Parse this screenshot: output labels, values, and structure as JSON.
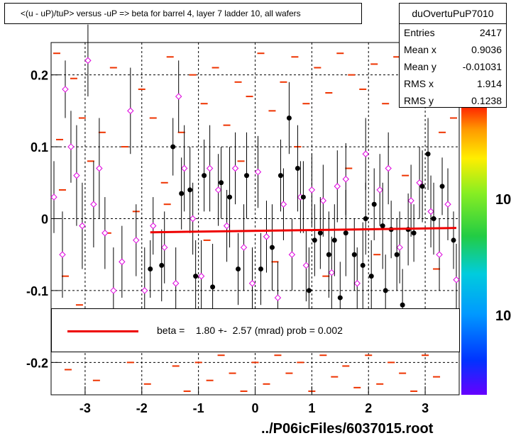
{
  "title": "<(u - uP)/tuP> versus  -uP => beta for barrel 4, layer 7 ladder 10, all wafers",
  "stats": {
    "name": "duOvertuPuP7010",
    "rows": [
      {
        "label": "Entries",
        "value": "2417"
      },
      {
        "label": "Mean x",
        "value": "0.9036"
      },
      {
        "label": "Mean y",
        "value": "-0.01031"
      },
      {
        "label": "RMS x",
        "value": "1.914"
      },
      {
        "label": "RMS y",
        "value": "0.1238"
      }
    ]
  },
  "legend": {
    "text": "beta =    1.80 +-  2.57 (mrad) prob = 0.002",
    "line_color": "#ee0000"
  },
  "footer": "../P06icFiles/6037015.root",
  "colors": {
    "histogram_marks": "#ee3300",
    "profile_black": "#000000",
    "profile_magenta": "#dd00dd",
    "fit_line": "#ee0000"
  },
  "colorbar_labels": [
    "10",
    "10"
  ],
  "chart_data": {
    "type": "scatter",
    "xlim": [
      -3.6,
      3.6
    ],
    "ylim": [
      -0.245,
      0.245
    ],
    "xticks": [
      -3,
      -2,
      -1,
      0,
      1,
      2,
      3
    ],
    "yticks": [
      -0.2,
      -0.1,
      0,
      0.1,
      0.2
    ],
    "grid": true,
    "fit": {
      "x": [
        -1.85,
        3.55
      ],
      "y": [
        -0.019,
        -0.013
      ]
    },
    "profile_black": [
      {
        "x": -1.85,
        "y": -0.07,
        "err": 0.04
      },
      {
        "x": -1.65,
        "y": -0.065,
        "err": 0.05
      },
      {
        "x": -1.45,
        "y": 0.1,
        "err": 0.04
      },
      {
        "x": -1.3,
        "y": 0.035,
        "err": 0.05
      },
      {
        "x": -1.15,
        "y": 0.04,
        "err": 0.06
      },
      {
        "x": -1.05,
        "y": -0.08,
        "err": 0.05
      },
      {
        "x": -0.9,
        "y": 0.06,
        "err": 0.05
      },
      {
        "x": -0.75,
        "y": -0.095,
        "err": 0.06
      },
      {
        "x": -0.6,
        "y": 0.05,
        "err": 0.05
      },
      {
        "x": -0.45,
        "y": 0.03,
        "err": 0.07
      },
      {
        "x": -0.3,
        "y": -0.07,
        "err": 0.05
      },
      {
        "x": -0.15,
        "y": 0.06,
        "err": 0.06
      },
      {
        "x": 0.1,
        "y": -0.07,
        "err": 0.05
      },
      {
        "x": 0.3,
        "y": -0.04,
        "err": 0.06
      },
      {
        "x": 0.45,
        "y": 0.06,
        "err": 0.05
      },
      {
        "x": 0.6,
        "y": 0.14,
        "err": 0.05
      },
      {
        "x": 0.75,
        "y": 0.07,
        "err": 0.06
      },
      {
        "x": 0.85,
        "y": 0.03,
        "err": 0.05
      },
      {
        "x": 0.95,
        "y": -0.1,
        "err": 0.06
      },
      {
        "x": 1.05,
        "y": -0.03,
        "err": 0.05
      },
      {
        "x": 1.15,
        "y": -0.02,
        "err": 0.05
      },
      {
        "x": 1.3,
        "y": -0.05,
        "err": 0.06
      },
      {
        "x": 1.4,
        "y": -0.03,
        "err": 0.05
      },
      {
        "x": 1.5,
        "y": -0.11,
        "err": 0.05
      },
      {
        "x": 1.6,
        "y": -0.02,
        "err": 0.06
      },
      {
        "x": 1.75,
        "y": -0.05,
        "err": 0.05
      },
      {
        "x": 1.9,
        "y": -0.065,
        "err": 0.06
      },
      {
        "x": 1.95,
        "y": 0.0,
        "err": 0.05
      },
      {
        "x": 2.05,
        "y": -0.08,
        "err": 0.05
      },
      {
        "x": 2.1,
        "y": 0.02,
        "err": 0.05
      },
      {
        "x": 2.25,
        "y": -0.01,
        "err": 0.06
      },
      {
        "x": 2.3,
        "y": -0.1,
        "err": 0.05
      },
      {
        "x": 2.4,
        "y": -0.015,
        "err": 0.04
      },
      {
        "x": 2.5,
        "y": -0.05,
        "err": 0.05
      },
      {
        "x": 2.6,
        "y": -0.12,
        "err": 0.05
      },
      {
        "x": 2.7,
        "y": -0.015,
        "err": 0.05
      },
      {
        "x": 2.8,
        "y": -0.02,
        "err": 0.04
      },
      {
        "x": 2.95,
        "y": 0.045,
        "err": 0.05
      },
      {
        "x": 3.05,
        "y": 0.09,
        "err": 0.05
      },
      {
        "x": 3.15,
        "y": 0.0,
        "err": 0.05
      },
      {
        "x": 3.3,
        "y": 0.045,
        "err": 0.04
      },
      {
        "x": 3.5,
        "y": -0.03,
        "err": 0.04
      }
    ],
    "profile_magenta": [
      {
        "x": -3.55,
        "y": 0.03,
        "err": 0.05
      },
      {
        "x": -3.4,
        "y": -0.05,
        "err": 0.06
      },
      {
        "x": -3.35,
        "y": 0.18,
        "err": 0.04
      },
      {
        "x": -3.25,
        "y": 0.1,
        "err": 0.05
      },
      {
        "x": -3.15,
        "y": 0.06,
        "err": 0.07
      },
      {
        "x": -3.05,
        "y": -0.01,
        "err": 0.06
      },
      {
        "x": -2.95,
        "y": 0.22,
        "err": 0.05
      },
      {
        "x": -2.85,
        "y": 0.02,
        "err": 0.06
      },
      {
        "x": -2.75,
        "y": 0.07,
        "err": 0.07
      },
      {
        "x": -2.65,
        "y": -0.02,
        "err": 0.05
      },
      {
        "x": -2.5,
        "y": -0.1,
        "err": 0.06
      },
      {
        "x": -2.35,
        "y": -0.06,
        "err": 0.05
      },
      {
        "x": -2.2,
        "y": 0.15,
        "err": 0.06
      },
      {
        "x": -2.1,
        "y": -0.03,
        "err": 0.05
      },
      {
        "x": -1.95,
        "y": -0.1,
        "err": 0.06
      },
      {
        "x": -1.8,
        "y": -0.01,
        "err": 0.04
      },
      {
        "x": -1.6,
        "y": -0.04,
        "err": 0.05
      },
      {
        "x": -1.4,
        "y": -0.09,
        "err": 0.05
      },
      {
        "x": -1.35,
        "y": 0.17,
        "err": 0.05
      },
      {
        "x": -1.25,
        "y": 0.07,
        "err": 0.06
      },
      {
        "x": -1.1,
        "y": 0.0,
        "err": 0.05
      },
      {
        "x": -0.95,
        "y": -0.08,
        "err": 0.05
      },
      {
        "x": -0.8,
        "y": 0.07,
        "err": 0.06
      },
      {
        "x": -0.65,
        "y": 0.04,
        "err": 0.05
      },
      {
        "x": -0.5,
        "y": -0.01,
        "err": 0.05
      },
      {
        "x": -0.35,
        "y": 0.07,
        "err": 0.05
      },
      {
        "x": -0.2,
        "y": -0.04,
        "err": 0.06
      },
      {
        "x": -0.05,
        "y": -0.09,
        "err": 0.05
      },
      {
        "x": 0.05,
        "y": 0.065,
        "err": 0.05
      },
      {
        "x": 0.2,
        "y": -0.025,
        "err": 0.05
      },
      {
        "x": 0.4,
        "y": -0.11,
        "err": 0.05
      },
      {
        "x": 0.5,
        "y": 0.02,
        "err": 0.05
      },
      {
        "x": 0.65,
        "y": -0.05,
        "err": 0.05
      },
      {
        "x": 0.8,
        "y": 0.03,
        "err": 0.05
      },
      {
        "x": 0.9,
        "y": -0.065,
        "err": 0.05
      },
      {
        "x": 1.0,
        "y": 0.04,
        "err": 0.05
      },
      {
        "x": 1.2,
        "y": 0.025,
        "err": 0.05
      },
      {
        "x": 1.35,
        "y": -0.075,
        "err": 0.05
      },
      {
        "x": 1.45,
        "y": 0.045,
        "err": 0.05
      },
      {
        "x": 1.6,
        "y": 0.055,
        "err": 0.05
      },
      {
        "x": 1.8,
        "y": -0.09,
        "err": 0.05
      },
      {
        "x": 1.95,
        "y": 0.09,
        "err": 0.05
      },
      {
        "x": 2.2,
        "y": 0.04,
        "err": 0.05
      },
      {
        "x": 2.35,
        "y": 0.07,
        "err": 0.05
      },
      {
        "x": 2.55,
        "y": -0.04,
        "err": 0.05
      },
      {
        "x": 2.75,
        "y": 0.025,
        "err": 0.05
      },
      {
        "x": 2.9,
        "y": 0.05,
        "err": 0.05
      },
      {
        "x": 3.1,
        "y": 0.01,
        "err": 0.05
      },
      {
        "x": 3.25,
        "y": -0.05,
        "err": 0.05
      },
      {
        "x": 3.4,
        "y": 0.02,
        "err": 0.05
      },
      {
        "x": 3.55,
        "y": -0.085,
        "err": 0.05
      }
    ],
    "histogram_marks": [
      {
        "x": -3.5,
        "y": 0.23
      },
      {
        "x": -3.45,
        "y": 0.11
      },
      {
        "x": -3.4,
        "y": 0.04
      },
      {
        "x": -3.35,
        "y": -0.08
      },
      {
        "x": -3.3,
        "y": -0.21
      },
      {
        "x": -3.2,
        "y": 0.195
      },
      {
        "x": -3.1,
        "y": -0.12
      },
      {
        "x": -3.05,
        "y": 0.14
      },
      {
        "x": -2.95,
        "y": -0.18
      },
      {
        "x": -2.9,
        "y": 0.08
      },
      {
        "x": -2.8,
        "y": -0.225
      },
      {
        "x": -2.7,
        "y": 0.12
      },
      {
        "x": -2.6,
        "y": -0.02
      },
      {
        "x": -2.5,
        "y": 0.21
      },
      {
        "x": -2.4,
        "y": -0.14
      },
      {
        "x": -2.3,
        "y": 0.1
      },
      {
        "x": -2.2,
        "y": -0.2
      },
      {
        "x": -2.1,
        "y": 0.01
      },
      {
        "x": -2.0,
        "y": 0.18
      },
      {
        "x": -1.9,
        "y": -0.23
      },
      {
        "x": -1.8,
        "y": 0.14
      },
      {
        "x": -1.7,
        "y": -0.16
      },
      {
        "x": -1.6,
        "y": 0.05
      },
      {
        "x": -1.5,
        "y": 0.225
      },
      {
        "x": -1.4,
        "y": -0.205
      },
      {
        "x": -1.3,
        "y": 0.12
      },
      {
        "x": -1.2,
        "y": -0.24
      },
      {
        "x": -1.1,
        "y": 0.2
      },
      {
        "x": -1.0,
        "y": -0.2
      },
      {
        "x": -0.9,
        "y": 0.16
      },
      {
        "x": -0.8,
        "y": -0.225
      },
      {
        "x": -0.7,
        "y": 0.21
      },
      {
        "x": -0.6,
        "y": -0.19
      },
      {
        "x": -0.5,
        "y": 0.13
      },
      {
        "x": -0.4,
        "y": -0.215
      },
      {
        "x": -0.3,
        "y": 0.19
      },
      {
        "x": -0.2,
        "y": -0.24
      },
      {
        "x": -0.1,
        "y": 0.17
      },
      {
        "x": 0.0,
        "y": -0.2
      },
      {
        "x": 0.1,
        "y": 0.23
      },
      {
        "x": 0.2,
        "y": -0.23
      },
      {
        "x": 0.3,
        "y": 0.15
      },
      {
        "x": 0.4,
        "y": -0.19
      },
      {
        "x": 0.5,
        "y": 0.19
      },
      {
        "x": 0.6,
        "y": -0.215
      },
      {
        "x": 0.7,
        "y": 0.225
      },
      {
        "x": 0.8,
        "y": -0.2
      },
      {
        "x": 0.9,
        "y": 0.16
      },
      {
        "x": 1.0,
        "y": -0.24
      },
      {
        "x": 1.1,
        "y": 0.21
      },
      {
        "x": 1.2,
        "y": -0.19
      },
      {
        "x": 1.3,
        "y": 0.175
      },
      {
        "x": 1.4,
        "y": -0.22
      },
      {
        "x": 1.5,
        "y": 0.23
      },
      {
        "x": 1.6,
        "y": -0.205
      },
      {
        "x": 1.7,
        "y": 0.2
      },
      {
        "x": 1.8,
        "y": -0.235
      },
      {
        "x": 1.9,
        "y": 0.18
      },
      {
        "x": 2.0,
        "y": -0.19
      },
      {
        "x": 2.1,
        "y": 0.215
      },
      {
        "x": 2.2,
        "y": -0.23
      },
      {
        "x": 2.3,
        "y": 0.16
      },
      {
        "x": 2.4,
        "y": -0.2
      },
      {
        "x": 2.5,
        "y": 0.225
      },
      {
        "x": 2.6,
        "y": -0.215
      },
      {
        "x": 2.7,
        "y": 0.2
      },
      {
        "x": 2.8,
        "y": -0.24
      },
      {
        "x": 2.9,
        "y": 0.17
      },
      {
        "x": 3.0,
        "y": -0.19
      },
      {
        "x": 3.1,
        "y": 0.23
      },
      {
        "x": 3.2,
        "y": -0.22
      },
      {
        "x": 3.3,
        "y": 0.12
      },
      {
        "x": 3.4,
        "y": -0.16
      },
      {
        "x": 3.5,
        "y": 0.14
      },
      {
        "x": -1.55,
        "y": 0.02
      },
      {
        "x": -0.85,
        "y": -0.03
      },
      {
        "x": -0.25,
        "y": 0.08
      },
      {
        "x": 0.35,
        "y": -0.06
      },
      {
        "x": 0.75,
        "y": 0.1
      },
      {
        "x": 1.25,
        "y": -0.08
      },
      {
        "x": 1.65,
        "y": 0.07
      },
      {
        "x": 2.15,
        "y": -0.05
      },
      {
        "x": 2.65,
        "y": 0.06
      },
      {
        "x": 3.2,
        "y": -0.07
      }
    ]
  }
}
